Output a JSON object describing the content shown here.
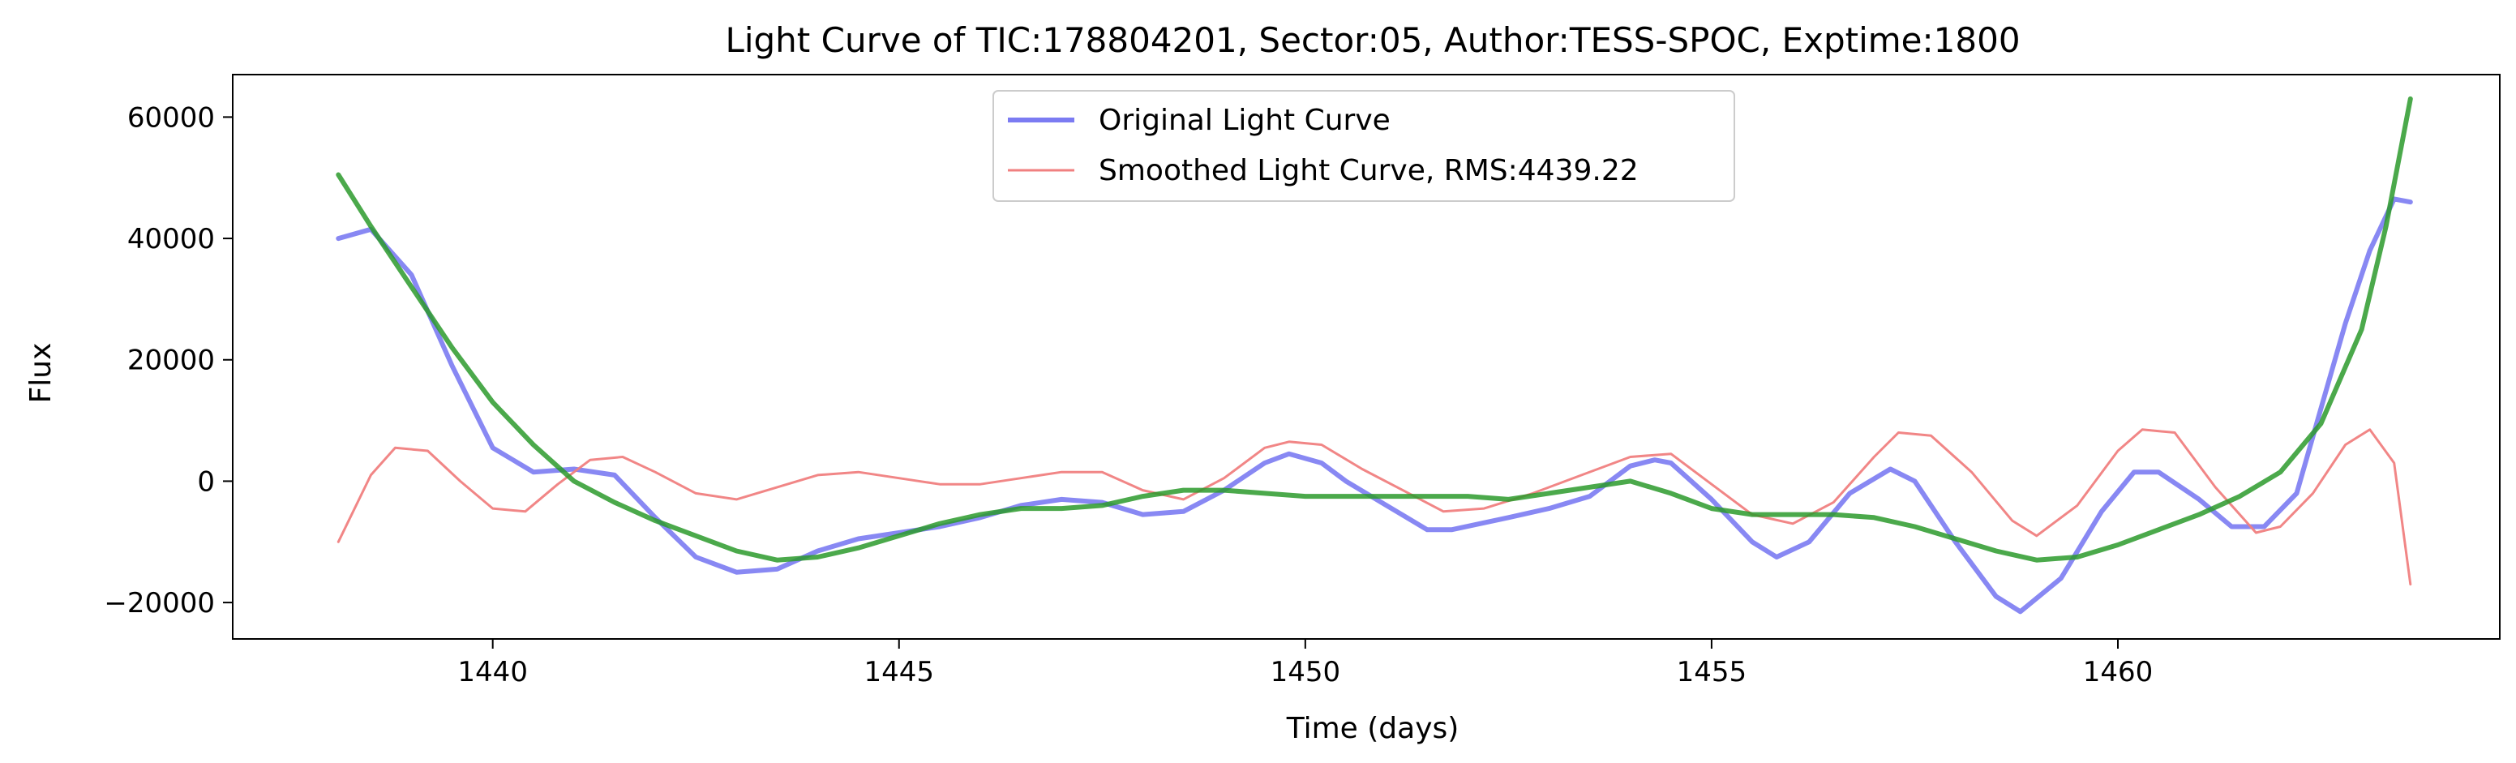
{
  "chart_data": {
    "type": "line",
    "title": "Light Curve of TIC:178804201, Sector:05, Author:TESS-SPOC, Exptime:1800",
    "xlabel": "Time (days)",
    "ylabel": "Flux",
    "xlim": [
      1436.8,
      1464.7
    ],
    "ylim": [
      -26000,
      67000
    ],
    "xticks": [
      1440,
      1445,
      1450,
      1455,
      1460
    ],
    "xtick_labels": [
      "1440",
      "1445",
      "1450",
      "1455",
      "1460"
    ],
    "yticks": [
      -20000,
      0,
      20000,
      40000,
      60000
    ],
    "ytick_labels": [
      "−20000",
      "0",
      "20000",
      "40000",
      "60000"
    ],
    "grid": false,
    "legend_position": "upper-center",
    "legend": [
      {
        "label": "Original Light Curve",
        "color": "#7b7bf2"
      },
      {
        "label": "Smoothed Light Curve, RMS:4439.22",
        "color": "#f08080"
      }
    ],
    "series": [
      {
        "name": "Original Light Curve",
        "color": "#7b7bf2",
        "x": [
          1438.1,
          1438.5,
          1439.0,
          1439.5,
          1440.0,
          1440.5,
          1441.0,
          1441.5,
          1442.0,
          1442.5,
          1443.0,
          1443.5,
          1444.0,
          1444.5,
          1445.0,
          1445.5,
          1446.0,
          1446.5,
          1447.0,
          1447.5,
          1448.0,
          1448.5,
          1449.0,
          1449.5,
          1449.8,
          1450.2,
          1450.5,
          1451.0,
          1451.5,
          1451.8,
          1452.5,
          1453.0,
          1453.5,
          1454.0,
          1454.3,
          1454.5,
          1455.0,
          1455.5,
          1455.8,
          1456.2,
          1456.7,
          1457.2,
          1457.5,
          1458.0,
          1458.5,
          1458.8,
          1459.3,
          1459.8,
          1460.2,
          1460.5,
          1461.0,
          1461.4,
          1461.8,
          1462.2,
          1462.5,
          1462.8,
          1463.1,
          1463.4,
          1463.6
        ],
        "y": [
          40000,
          41500,
          34000,
          19000,
          5500,
          1500,
          2000,
          1000,
          -6000,
          -12500,
          -15000,
          -14500,
          -11500,
          -9500,
          -8500,
          -7500,
          -6000,
          -4000,
          -3000,
          -3500,
          -5500,
          -5000,
          -1500,
          3000,
          4500,
          3000,
          0,
          -4000,
          -8000,
          -8000,
          -6000,
          -4500,
          -2500,
          2500,
          3500,
          3000,
          -3000,
          -10000,
          -12500,
          -10000,
          -2000,
          2000,
          0,
          -10000,
          -19000,
          -21500,
          -16000,
          -5000,
          1500,
          1500,
          -3000,
          -7500,
          -7500,
          -2000,
          12000,
          26000,
          38000,
          46500,
          46000
        ]
      },
      {
        "name": "Smoothed Light Curve, RMS:4439.22",
        "color": "#f08080",
        "x": [
          1438.1,
          1438.5,
          1438.8,
          1439.2,
          1439.6,
          1440.0,
          1440.4,
          1440.8,
          1441.2,
          1441.6,
          1442.0,
          1442.5,
          1443.0,
          1443.5,
          1444.0,
          1444.5,
          1445.0,
          1445.5,
          1446.0,
          1446.5,
          1447.0,
          1447.5,
          1448.0,
          1448.5,
          1449.0,
          1449.5,
          1449.8,
          1450.2,
          1450.7,
          1451.2,
          1451.7,
          1452.2,
          1452.8,
          1453.4,
          1454.0,
          1454.5,
          1455.0,
          1455.5,
          1456.0,
          1456.5,
          1457.0,
          1457.3,
          1457.7,
          1458.2,
          1458.7,
          1459.0,
          1459.5,
          1460.0,
          1460.3,
          1460.7,
          1461.2,
          1461.7,
          1462.0,
          1462.4,
          1462.8,
          1463.1,
          1463.4,
          1463.6
        ],
        "y": [
          -10000,
          1000,
          5500,
          5000,
          0,
          -4500,
          -5000,
          -500,
          3500,
          4000,
          1500,
          -2000,
          -3000,
          -1000,
          1000,
          1500,
          500,
          -500,
          -500,
          500,
          1500,
          1500,
          -1500,
          -3000,
          500,
          5500,
          6500,
          6000,
          2000,
          -1500,
          -5000,
          -4500,
          -2000,
          1000,
          4000,
          4500,
          -500,
          -5500,
          -7000,
          -3500,
          4000,
          8000,
          7500,
          1500,
          -6500,
          -9000,
          -4000,
          5000,
          8500,
          8000,
          -1000,
          -8500,
          -7500,
          -2000,
          6000,
          8500,
          3000,
          -17000
        ]
      },
      {
        "name": "",
        "color": "#2c9a2c",
        "x": [
          1438.1,
          1438.5,
          1439.0,
          1439.5,
          1440.0,
          1440.5,
          1441.0,
          1441.5,
          1442.0,
          1442.5,
          1443.0,
          1443.5,
          1444.0,
          1444.5,
          1445.0,
          1445.5,
          1446.0,
          1446.5,
          1447.0,
          1447.5,
          1448.0,
          1448.5,
          1449.0,
          1449.5,
          1450.0,
          1450.5,
          1451.0,
          1451.5,
          1452.0,
          1452.5,
          1453.0,
          1453.5,
          1454.0,
          1454.5,
          1455.0,
          1455.5,
          1456.0,
          1456.5,
          1457.0,
          1457.5,
          1458.0,
          1458.5,
          1459.0,
          1459.5,
          1460.0,
          1460.5,
          1461.0,
          1461.5,
          1462.0,
          1462.5,
          1463.0,
          1463.3,
          1463.6
        ],
        "y": [
          50500,
          42000,
          32000,
          22000,
          13000,
          6000,
          0,
          -3500,
          -6500,
          -9000,
          -11500,
          -13000,
          -12500,
          -11000,
          -9000,
          -7000,
          -5500,
          -4500,
          -4500,
          -4000,
          -2500,
          -1500,
          -1500,
          -2000,
          -2500,
          -2500,
          -2500,
          -2500,
          -2500,
          -3000,
          -2000,
          -1000,
          0,
          -2000,
          -4500,
          -5500,
          -5500,
          -5500,
          -6000,
          -7500,
          -9500,
          -11500,
          -13000,
          -12500,
          -10500,
          -8000,
          -5500,
          -2500,
          1500,
          9500,
          25000,
          42000,
          63000
        ]
      }
    ]
  }
}
